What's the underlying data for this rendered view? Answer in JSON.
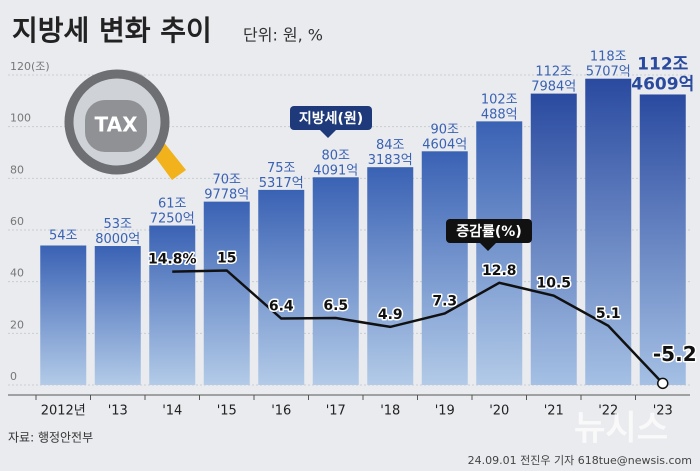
{
  "chart_data": {
    "type": "bar_line",
    "title": "지방세 변화 추이",
    "subtitle": "단위: 원, %",
    "categories": [
      "2012년",
      "'13",
      "'14",
      "'15",
      "'16",
      "'17",
      "'18",
      "'19",
      "'20",
      "'21",
      "'22",
      "'23"
    ],
    "ylim": [
      0,
      120
    ],
    "yticks": [
      0,
      20,
      40,
      60,
      80,
      100,
      {
        "value": 120,
        "label": "120(조)"
      }
    ],
    "y2lim": [
      -5.5,
      50
    ],
    "grid": true,
    "series": [
      {
        "name": "지방세(원)",
        "type": "bar",
        "color": "#3a62b4",
        "values": [
          54,
          53.8,
          61.725,
          70.9778,
          75.5317,
          80.4091,
          84.3183,
          90.4604,
          102.0488,
          112.7984,
          118.5707,
          112.4609
        ],
        "value_labels": [
          "54조",
          "53조 8000억",
          "61조 7250억",
          "70조 9778억",
          "75조 5317억",
          "80조 4091억",
          "84조 3183억",
          "90조 4604억",
          "102조 488억",
          "112조 7984억",
          "118조 5707억",
          "112조 4609억"
        ]
      },
      {
        "name": "증감률(%)",
        "type": "line",
        "axis": "y2",
        "color": "#111111",
        "values": [
          null,
          null,
          14.8,
          15,
          6.4,
          6.5,
          4.9,
          7.3,
          12.8,
          10.5,
          5.1,
          -5.2
        ],
        "value_labels": [
          null,
          null,
          "14.8%",
          "15",
          "6.4",
          "6.5",
          "4.9",
          "7.3",
          "12.8",
          "10.5",
          "5.1",
          "-5.2"
        ]
      }
    ],
    "icon_text": "TAX",
    "source": "자료: 행정안전부",
    "credit": "24.09.01 전진우 기자 618tue@newsis.com",
    "watermark": "뉴시스"
  }
}
